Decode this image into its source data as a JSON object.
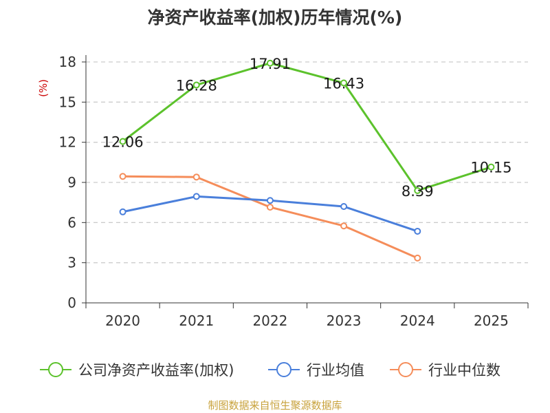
{
  "chart_data": {
    "type": "line",
    "title": "净资产收益率(加权)历年情况(%)",
    "ylabel": "(%)",
    "xlabel": "",
    "categories": [
      "2020",
      "2021",
      "2022",
      "2023",
      "2024",
      "2025"
    ],
    "ylim": [
      0,
      18
    ],
    "yticks": [
      0,
      3,
      6,
      9,
      12,
      15,
      18
    ],
    "grid": true,
    "legend_position": "bottom",
    "series": [
      {
        "name": "公司净资产收益率(加权)",
        "color": "#5cc22c",
        "values": [
          12.06,
          16.28,
          17.91,
          16.43,
          8.39,
          10.15
        ],
        "show_labels": true
      },
      {
        "name": "行业均值",
        "color": "#4a7fdb",
        "values": [
          6.8,
          7.95,
          7.65,
          7.2,
          5.35,
          null
        ],
        "show_labels": false
      },
      {
        "name": "行业中位数",
        "color": "#f58d5a",
        "values": [
          9.45,
          9.4,
          7.15,
          5.75,
          3.35,
          null
        ],
        "show_labels": false
      }
    ],
    "data_labels": [
      "12.06",
      "16.28",
      "17.91",
      "16.43",
      "8.39",
      "10.15"
    ]
  },
  "colors": {
    "title": "#333333",
    "unit": "#cc0000",
    "source": "#c8a23c",
    "grid": "#cccccc",
    "axis": "#333333"
  },
  "source_text": "制图数据来自恒生聚源数据库"
}
